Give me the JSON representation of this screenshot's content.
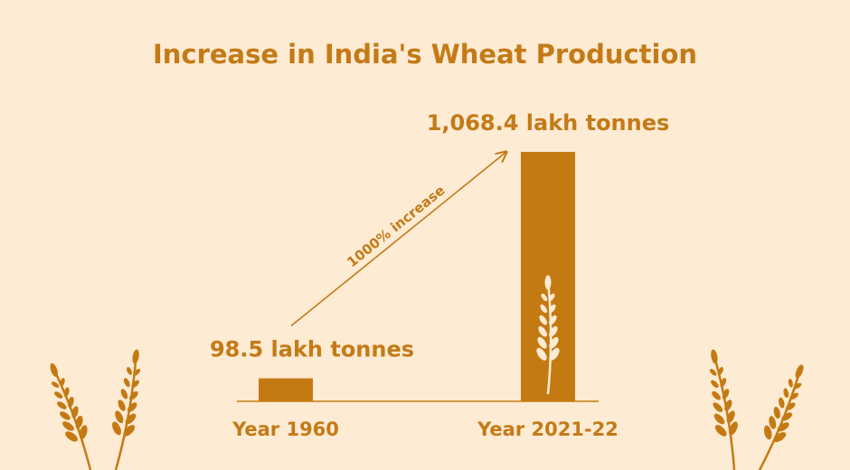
{
  "chart_data": {
    "type": "bar",
    "title": "Increase in India's Wheat Production",
    "categories": [
      "Year 1960",
      "Year 2021-22"
    ],
    "values": [
      98.5,
      1068.4
    ],
    "value_labels": [
      "98.5 lakh tonnes",
      "1,068.4 lakh tonnes"
    ],
    "annotation": "1000% increase",
    "color": "#c47a12"
  }
}
